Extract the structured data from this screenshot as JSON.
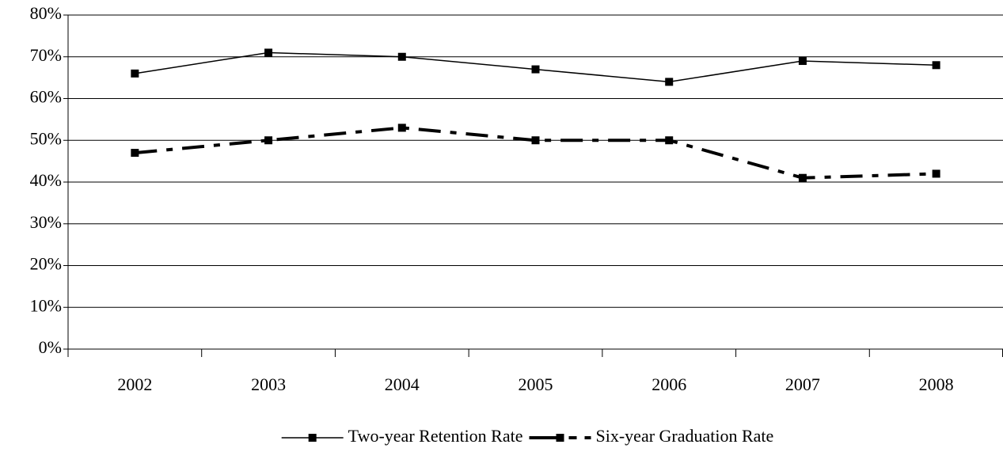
{
  "chart_data": {
    "type": "line",
    "categories": [
      "2002",
      "2003",
      "2004",
      "2005",
      "2006",
      "2007",
      "2008"
    ],
    "series": [
      {
        "name": "Two-year Retention Rate",
        "color": "#000000",
        "line_style": "solid",
        "values": [
          66,
          71,
          70,
          67,
          64,
          69,
          68
        ]
      },
      {
        "name": "Six-year Graduation Rate",
        "color": "#000000",
        "line_style": "dashdot",
        "values": [
          47,
          50,
          53,
          50,
          50,
          41,
          42
        ]
      }
    ],
    "ylim": [
      0,
      80
    ],
    "yticks": [
      {
        "value": 0,
        "label": "0%"
      },
      {
        "value": 10,
        "label": "10%"
      },
      {
        "value": 20,
        "label": "20%"
      },
      {
        "value": 30,
        "label": "30%"
      },
      {
        "value": 40,
        "label": "40%"
      },
      {
        "value": 50,
        "label": "50%"
      },
      {
        "value": 60,
        "label": "60%"
      },
      {
        "value": 70,
        "label": "70%"
      },
      {
        "value": 80,
        "label": "80%"
      }
    ],
    "grid": true,
    "legend": "bottom"
  }
}
